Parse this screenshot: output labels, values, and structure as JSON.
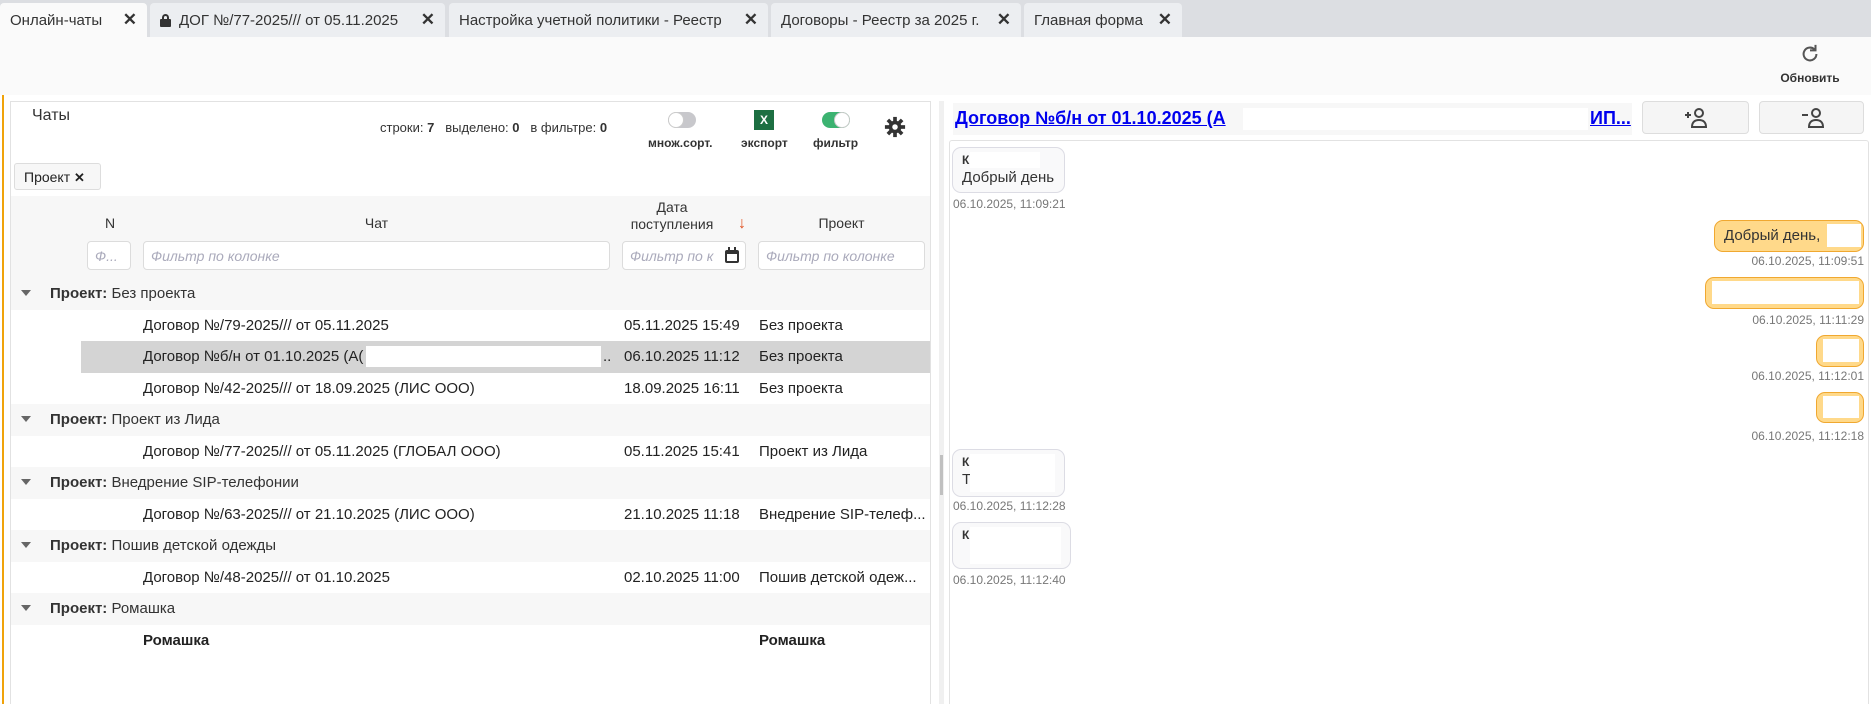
{
  "tabs": [
    {
      "label": "Онлайн-чаты",
      "active": true,
      "locked": false
    },
    {
      "label": "ДОГ №/77-2025/// от 05.11.2025",
      "active": false,
      "locked": true
    },
    {
      "label": "Настройка учетной политики - Реестр",
      "active": false,
      "locked": false
    },
    {
      "label": "Договоры - Реестр за 2025 г.",
      "active": false,
      "locked": false
    },
    {
      "label": "Главная форма",
      "active": false,
      "locked": false
    }
  ],
  "toolbar": {
    "refresh_label": "Обновить"
  },
  "left": {
    "title": "Чаты",
    "stats": {
      "rows_label": "строки:",
      "rows": "7",
      "selected_label": "выделено:",
      "selected": "0",
      "filtered_label": "в фильтре:",
      "filtered": "0"
    },
    "multisort_label": "множ.сорт.",
    "multisort_on": false,
    "export_label": "экспорт",
    "export_icon": "X",
    "filter_label": "фильтр",
    "filter_on": true,
    "group_chip": "Проект",
    "columns": {
      "n": "N",
      "chat": "Чат",
      "date_line1": "Дата",
      "date_line2": "поступления",
      "project": "Проект"
    },
    "filters": {
      "n": "Ф...",
      "chat": "Фильтр по колонке",
      "date": "Фильтр по к",
      "project": "Фильтр по колонке"
    },
    "group_prefix": "Проект:",
    "groups": [
      {
        "name": "Без проекта",
        "rows": [
          {
            "chat": "Договор №/79-2025/// от 05.11.2025",
            "date": "05.11.2025 15:49",
            "project": "Без проекта"
          },
          {
            "chat": "Договор №б/н от 01.10.2025 (А(",
            "chat_tail": "..",
            "date": "06.10.2025 11:12",
            "project": "Без проекта",
            "selected": true,
            "redacted": true
          },
          {
            "chat": "Договор №/42-2025/// от 18.09.2025 (ЛИС ООО)",
            "date": "18.09.2025 16:11",
            "project": "Без проекта"
          }
        ]
      },
      {
        "name": "Проект из Лида",
        "rows": [
          {
            "chat": "Договор №/77-2025/// от 05.11.2025 (ГЛОБАЛ ООО)",
            "date": "05.11.2025 15:41",
            "project": "Проект из Лида"
          }
        ]
      },
      {
        "name": "Внедрение SIP-телефонии",
        "rows": [
          {
            "chat": "Договор №/63-2025/// от 21.10.2025 (ЛИС ООО)",
            "date": "21.10.2025 11:18",
            "project": "Внедрение SIP-телеф..."
          }
        ]
      },
      {
        "name": "Пошив детской одежды",
        "rows": [
          {
            "chat": "Договор №/48-2025/// от 01.10.2025",
            "date": "02.10.2025 11:00",
            "project": "Пошив детской одеж..."
          }
        ]
      },
      {
        "name": "Ромашка",
        "rows": [
          {
            "chat": "Ромашка",
            "date": "",
            "project": "Ромашка",
            "bold": true
          }
        ]
      }
    ]
  },
  "chat": {
    "title": "Договор №б/н от 01.10.2025 (А",
    "title_tail": "ИП...",
    "messages": [
      {
        "side": "left",
        "sender": "К(",
        "text": "Добрый день",
        "time": "06.10.2025, 11:09:21"
      },
      {
        "side": "right",
        "text": "Добрый день,",
        "time": "06.10.2025, 11:09:51"
      },
      {
        "side": "right",
        "text": "",
        "time": "06.10.2025, 11:11:29"
      },
      {
        "side": "right",
        "text": "",
        "time": "06.10.2025, 11:12:01"
      },
      {
        "side": "right",
        "text": "",
        "time": "06.10.2025, 11:12:18"
      },
      {
        "side": "left",
        "sender": "К",
        "text": "Т",
        "time": "06.10.2025, 11:12:28"
      },
      {
        "side": "left",
        "sender": "К",
        "text": "",
        "time": "06.10.2025, 11:12:40"
      }
    ]
  },
  "colors": {
    "accent": "#f0a30a",
    "link": "#0000ee",
    "bubble_out": "#ffd98a",
    "toggle_on": "#3cb371",
    "excel": "#1d6f42",
    "selected_row": "#d4d4d4"
  }
}
